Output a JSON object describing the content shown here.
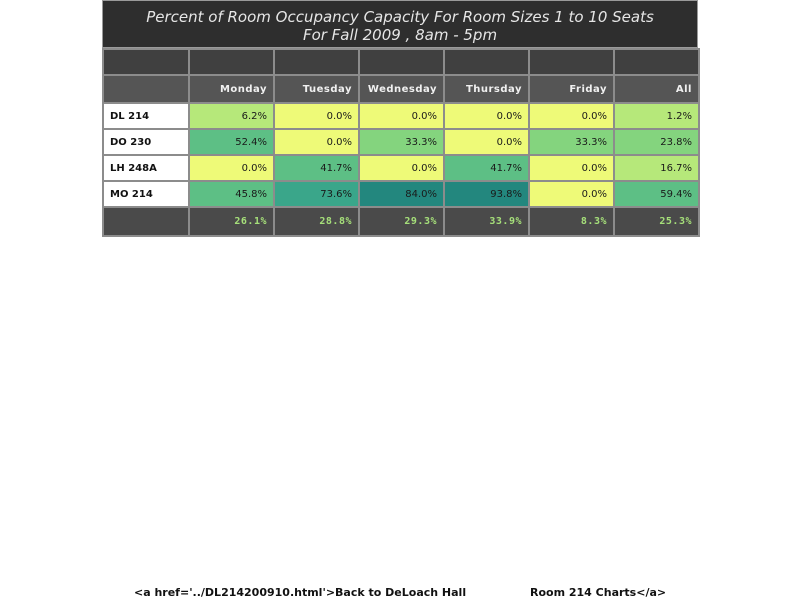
{
  "title": {
    "line1": "Percent of Room Occupancy Capacity For Room Sizes 1 to 10 Seats",
    "line2": "For Fall 2009  , 8am - 5pm"
  },
  "columns": [
    "Monday",
    "Tuesday",
    "Wednesday",
    "Thursday",
    "Friday",
    "All"
  ],
  "rows": [
    {
      "room": "DL 214",
      "values": [
        "6.2%",
        "0.0%",
        "0.0%",
        "0.0%",
        "0.0%",
        "1.2%"
      ],
      "colors": [
        "#b6e87a",
        "#eefa78",
        "#eefa78",
        "#eefa78",
        "#eefa78",
        "#b6e87a"
      ]
    },
    {
      "room": "DO 230",
      "values": [
        "52.4%",
        "0.0%",
        "33.3%",
        "0.0%",
        "33.3%",
        "23.8%"
      ],
      "colors": [
        "#5dbf85",
        "#eefa78",
        "#84d47e",
        "#eefa78",
        "#84d47e",
        "#84d47e"
      ]
    },
    {
      "room": "LH 248A",
      "values": [
        "0.0%",
        "41.7%",
        "0.0%",
        "41.7%",
        "0.0%",
        "16.7%"
      ],
      "colors": [
        "#eefa78",
        "#5dbf85",
        "#eefa78",
        "#5dbf85",
        "#eefa78",
        "#b6e87a"
      ]
    },
    {
      "room": "MO 214",
      "values": [
        "45.8%",
        "73.6%",
        "84.0%",
        "93.8%",
        "0.0%",
        "59.4%"
      ],
      "colors": [
        "#5dbf85",
        "#3aa68a",
        "#23877e",
        "#23877e",
        "#eefa78",
        "#5dbf85"
      ]
    }
  ],
  "totals": [
    "26.1%",
    "28.8%",
    "29.3%",
    "33.9%",
    "8.3%",
    "25.3%"
  ],
  "footer": {
    "left_text": "<a href='../DL214200910.html'>Back to DeLoach Hall",
    "right_text": "Room 214 Charts</a>"
  }
}
